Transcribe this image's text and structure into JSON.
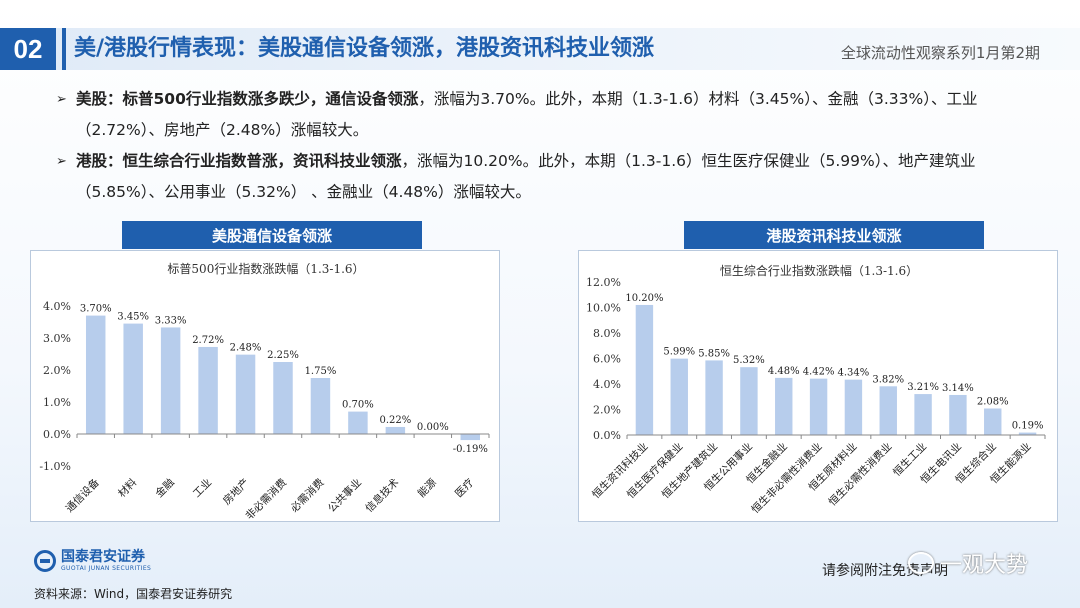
{
  "header": {
    "section_number": "02",
    "title": "美/港股行情表现：美股通信设备领涨，港股资讯科技业领涨",
    "series_tag": "全球流动性观察系列1月第2期"
  },
  "bullets": [
    {
      "icon": "arrow-bullet-icon",
      "lead": "美股：标普500行业指数涨多跌少，通信设备领涨",
      "body": "，涨幅为3.70%。此外，本期（1.3-1.6）材料（3.45%）、金融（3.33%）、工业（2.72%）、房地产（2.48%）涨幅较大。"
    },
    {
      "icon": "arrow-bullet-icon",
      "lead": "港股：恒生综合行业指数普涨，资讯科技业领涨",
      "body": "，涨幅为10.20%。此外，本期（1.3-1.6）恒生医疗保健业（5.99%）、地产建筑业（5.85%）、公用事业（5.32%） 、金融业（4.48%）涨幅较大。"
    }
  ],
  "chart_tabs": [
    "美股通信设备领涨",
    "港股资讯科技业领涨"
  ],
  "chart_data": [
    {
      "type": "bar",
      "title": "标普500行业指数涨跌幅（1.3-1.6）",
      "categories": [
        "通信设备",
        "材料",
        "金融",
        "工业",
        "房地产",
        "非必需消费",
        "必需消费",
        "公共事业",
        "信息技术",
        "能源",
        "医疗"
      ],
      "values": [
        3.7,
        3.45,
        3.33,
        2.72,
        2.48,
        2.25,
        1.75,
        0.7,
        0.22,
        0.0,
        -0.19
      ],
      "data_labels": [
        "3.70%",
        "3.45%",
        "3.33%",
        "2.72%",
        "2.48%",
        "2.25%",
        "1.75%",
        "0.70%",
        "0.22%",
        "0.00%",
        "-0.19%"
      ],
      "yticks": [
        -1.0,
        0.0,
        1.0,
        2.0,
        3.0,
        4.0
      ],
      "ytick_labels": [
        "-1.0%",
        "0.0%",
        "1.0%",
        "2.0%",
        "3.0%",
        "4.0%"
      ],
      "ylim": [
        -1.0,
        4.0
      ],
      "bar_color": "#b7cdec",
      "grid": false
    },
    {
      "type": "bar",
      "title": "恒生综合行业指数涨跌幅（1.3-1.6）",
      "categories": [
        "恒生资讯科技业",
        "恒生医疗保健业",
        "恒生地产建筑业",
        "恒生公用事业",
        "恒生金融业",
        "恒生非必需性消费业",
        "恒生原材料业",
        "恒生必需性消费业",
        "恒生工业",
        "恒生电讯业",
        "恒生综合业",
        "恒生能源业"
      ],
      "values": [
        10.2,
        5.99,
        5.85,
        5.32,
        4.48,
        4.42,
        4.34,
        3.82,
        3.21,
        3.14,
        2.08,
        0.19
      ],
      "data_labels": [
        "10.20%",
        "5.99%",
        "5.85%",
        "5.32%",
        "4.48%",
        "4.42%",
        "4.34%",
        "3.82%",
        "3.21%",
        "3.14%",
        "2.08%",
        "0.19%"
      ],
      "yticks": [
        0,
        2,
        4,
        6,
        8,
        10,
        12
      ],
      "ytick_labels": [
        "0.0%",
        "2.0%",
        "4.0%",
        "6.0%",
        "8.0%",
        "10.0%",
        "12.0%"
      ],
      "ylim": [
        0,
        12
      ],
      "bar_color": "#b7cdec",
      "grid": false
    }
  ],
  "footer": {
    "logo_cn": "国泰君安证券",
    "logo_en": "GUOTAI JUNAN SECURITIES",
    "source": "资料来源：Wind，国泰君安证券研究",
    "disclaimer": "请参阅附注免责声明",
    "watermark": "一观大势"
  },
  "colors": {
    "brand_blue": "#1f5fae",
    "bar": "#b7cdec"
  }
}
